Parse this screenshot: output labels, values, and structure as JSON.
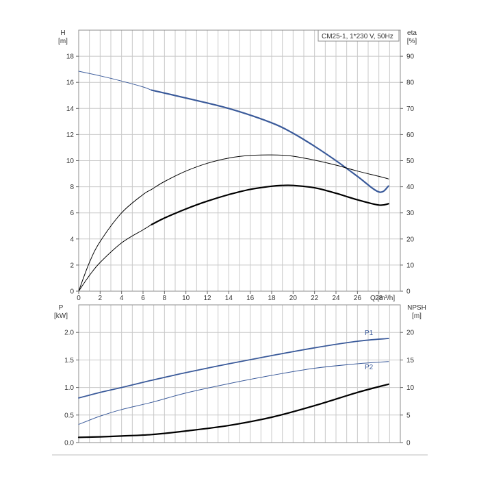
{
  "chart_data": [
    {
      "type": "line",
      "title": "CM25-1, 1*230 V, 50Hz",
      "xlabel": "Q [m³/h]",
      "x_unit_label": "Q [m³/h]",
      "ylabel_left": "H",
      "ylabel_left_unit": "[m]",
      "ylabel_right": "eta",
      "ylabel_right_unit": "[%]",
      "xlim": [
        0,
        30
      ],
      "xticks": [
        0,
        2,
        4,
        6,
        8,
        10,
        12,
        14,
        16,
        18,
        20,
        22,
        24,
        26,
        28
      ],
      "ylim_left": [
        0,
        20
      ],
      "yticks_left": [
        0,
        2,
        4,
        6,
        8,
        10,
        12,
        14,
        16,
        18
      ],
      "ylim_right": [
        0,
        100
      ],
      "yticks_right": [
        0,
        10,
        20,
        30,
        40,
        50,
        60,
        70,
        80,
        90
      ],
      "grid": true,
      "series": [
        {
          "axis": "left",
          "style": "thin",
          "color": "#3a5a9a",
          "x": [
            0,
            2,
            4,
            6,
            6.8
          ],
          "y": [
            16.85,
            16.5,
            16.1,
            15.65,
            15.4
          ]
        },
        {
          "axis": "left",
          "style": "thick",
          "color": "#3a5a9a",
          "x": [
            6.8,
            10,
            14,
            18,
            20,
            22,
            24,
            26,
            28,
            28.9
          ],
          "y": [
            15.4,
            14.8,
            14.0,
            12.9,
            12.1,
            11.1,
            10.0,
            8.8,
            7.6,
            8.05
          ]
        },
        {
          "axis": "right",
          "style": "thin",
          "color": "#000000",
          "x": [
            0,
            1,
            2,
            4,
            6,
            6.8,
            8,
            10,
            12,
            14,
            16,
            18,
            19,
            20,
            22,
            24,
            26,
            28,
            28.9
          ],
          "y": [
            0,
            11,
            19,
            30,
            37,
            39,
            42,
            46,
            49,
            51,
            52,
            52.2,
            52.1,
            51.7,
            50.2,
            48.3,
            46,
            44,
            43
          ]
        },
        {
          "axis": "right",
          "style": "thin",
          "color": "#000000",
          "x": [
            0,
            1,
            2,
            4,
            6,
            6.8
          ],
          "y": [
            0,
            6,
            11,
            18.5,
            23.5,
            25.5
          ]
        },
        {
          "axis": "right",
          "style": "thick",
          "color": "#000000",
          "x": [
            6.8,
            8,
            10,
            12,
            14,
            16,
            18,
            19,
            20,
            22,
            24,
            26,
            28,
            28.9
          ],
          "y": [
            25.5,
            28,
            31.5,
            34.5,
            37,
            39,
            40.2,
            40.5,
            40.5,
            39.6,
            37.5,
            35,
            33,
            33.5
          ]
        }
      ]
    },
    {
      "type": "line",
      "ylabel_left": "P",
      "ylabel_left_unit": "[kW]",
      "ylabel_right": "NPSH",
      "ylabel_right_unit": "[m]",
      "xlim": [
        0,
        30
      ],
      "ylim_left": [
        0,
        2.5
      ],
      "yticks_left": [
        "0.0",
        "0.5",
        "1.0",
        "1.5",
        "2.0"
      ],
      "ylim_right": [
        0,
        25
      ],
      "yticks_right": [
        0,
        5,
        10,
        15,
        20
      ],
      "grid": true,
      "series": [
        {
          "name": "P1",
          "axis": "left",
          "color": "#3a5a9a",
          "x": [
            0,
            2,
            4,
            6.8,
            10,
            14,
            18,
            22,
            26,
            28.9
          ],
          "y": [
            0.81,
            0.91,
            1.0,
            1.13,
            1.27,
            1.43,
            1.58,
            1.72,
            1.84,
            1.89
          ]
        },
        {
          "name": "P2",
          "axis": "left",
          "color": "#3a5a9a",
          "x": [
            0,
            2,
            4,
            6.8,
            10,
            14,
            18,
            22,
            26,
            28.9
          ],
          "y": [
            0.33,
            0.48,
            0.6,
            0.73,
            0.9,
            1.07,
            1.22,
            1.35,
            1.43,
            1.47
          ]
        },
        {
          "axis": "right",
          "color": "#000000",
          "x": [
            0,
            2,
            4,
            6.8,
            10,
            14,
            18,
            22,
            26,
            28.9
          ],
          "y": [
            0.95,
            1.05,
            1.2,
            1.45,
            2.1,
            3.1,
            4.6,
            6.7,
            9.1,
            10.6
          ]
        }
      ],
      "labels": {
        "p1": "P1",
        "p2": "P2"
      }
    }
  ]
}
